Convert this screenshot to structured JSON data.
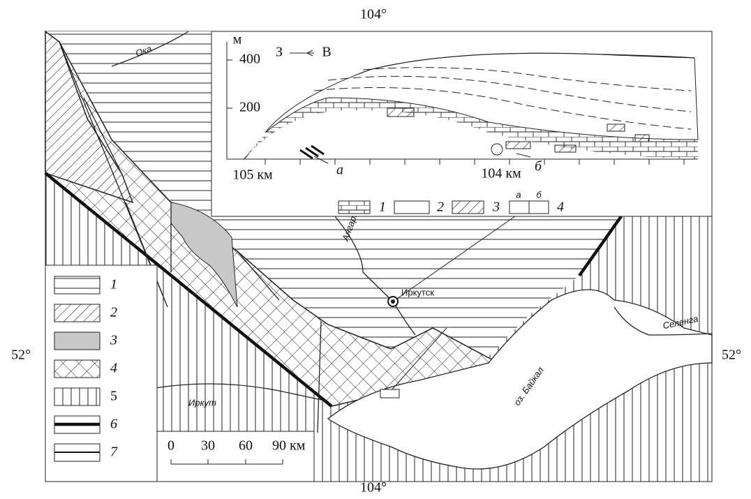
{
  "axis_labels": {
    "top": "104°",
    "bottom": "104°",
    "left": "52°",
    "right": "52°"
  },
  "places": {
    "oka": "Ока",
    "angara": "Ангара",
    "irkut": "Иркут",
    "selenga": "Селенга",
    "baikal": "оз. Байкал",
    "irkutsk": "Иркутск"
  },
  "inset": {
    "y_unit": "м",
    "y_labels": [
      "400",
      "200"
    ],
    "direction": {
      "west": "З",
      "east": "В"
    },
    "x_labels": [
      "105 км",
      "104 км"
    ],
    "markers": [
      "а",
      "б"
    ],
    "legend": [
      "1",
      "2",
      "3",
      "4"
    ],
    "legend_sub": [
      "а",
      "б"
    ]
  },
  "legend": [
    "1",
    "2",
    "3",
    "4",
    "5",
    "6",
    "7"
  ],
  "scale": {
    "ticks": [
      "0",
      "30",
      "60",
      "90 км"
    ]
  }
}
